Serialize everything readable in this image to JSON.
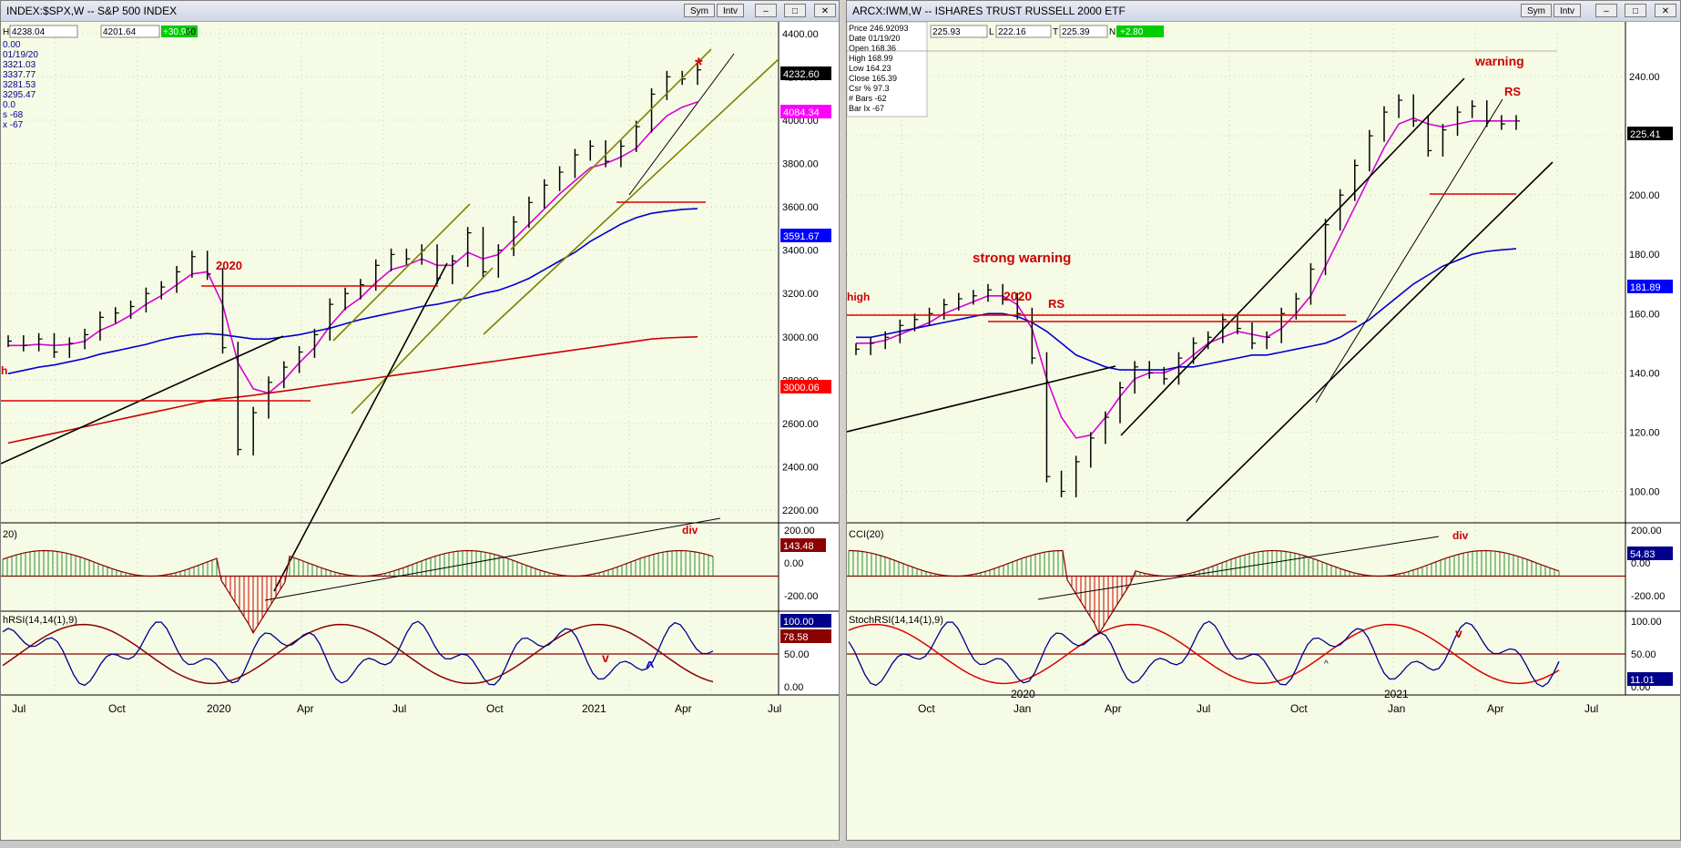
{
  "left": {
    "title": "INDEX:$SPX,W -- S&P 500 INDEX",
    "buttons": {
      "sym": "Sym",
      "intv": "Intv",
      "min": "–",
      "max": "□",
      "close": "✕"
    },
    "header_values": {
      "h_label": "H",
      "h_val": "4238.04",
      "last": "4201.64",
      "change": "+30.98",
      "extra": ".60"
    },
    "data_window": [
      "0.00",
      "01/19/20",
      "3321.03",
      "3337.77",
      "3281.53",
      "3295.47",
      "0.0",
      "s -68",
      "x -67"
    ],
    "price_axis_ticks": [
      "4400.00",
      "4200.00",
      "4000.00",
      "3800.00",
      "3600.00",
      "3400.00",
      "3200.00",
      "3000.00",
      "2800.00",
      "2600.00",
      "2400.00",
      "2200.00"
    ],
    "price_badges": [
      {
        "text": "4232.60",
        "color": "#000000"
      },
      {
        "text": "4084.34",
        "color": "#ff00ff"
      },
      {
        "text": "3591.67",
        "color": "#0000ff"
      },
      {
        "text": "3000.06",
        "color": "#ff0000"
      }
    ],
    "annotations": {
      "year2020": "2020",
      "star": "*",
      "h_edge": "h",
      "div": "div",
      "v": "v",
      "caret": "^"
    },
    "cci": {
      "label": "20)",
      "ticks": [
        "200.00",
        "0.00",
        "-200.00"
      ],
      "badge": "143.48"
    },
    "stoch": {
      "label": "hRSI(14,14(1),9)",
      "ticks": [
        "100.00",
        "50.00",
        "0.00"
      ],
      "badges": [
        "100.00",
        "78.58"
      ]
    },
    "time_axis": [
      "Jul",
      "Oct",
      "2020",
      "Apr",
      "Jul",
      "Oct",
      "2021",
      "Apr",
      "Jul"
    ]
  },
  "right": {
    "title": "ARCX:IWM,W -- ISHARES TRUST RUSSELL 2000 ETF",
    "buttons": {
      "sym": "Sym",
      "intv": "Intv",
      "min": "–",
      "max": "□",
      "close": "✕"
    },
    "header_values": {
      "v1": "225.93",
      "l_label": "L",
      "v2": "222.16",
      "t_label": "T",
      "v3": "225.39",
      "n_label": "N",
      "change": "+2.80"
    },
    "data_window": [
      "Price  246.92093",
      "Date   01/19/20",
      "Open   168.36",
      "High   168.99",
      "Low    164.23",
      "Close  165.39",
      "Csr %  97.3",
      "# Bars -62",
      "Bar Ix -67"
    ],
    "price_axis_ticks": [
      "240.00",
      "220.00",
      "200.00",
      "180.00",
      "160.00",
      "140.00",
      "120.00",
      "100.00"
    ],
    "price_badges": [
      {
        "text": "225.41",
        "color": "#000000"
      },
      {
        "text": "181.89",
        "color": "#0000ff"
      }
    ],
    "annotations": {
      "warning": "warning",
      "rs_top": "RS",
      "strong": "strong warning",
      "year2020": "2020",
      "rs": "RS",
      "high": "high",
      "div": "div",
      "v": "v",
      "caret": "^"
    },
    "cci": {
      "label": "CCI(20)",
      "ticks": [
        "200.00",
        "0.00",
        "-200.00"
      ],
      "badge": "54.83"
    },
    "stoch": {
      "label": "StochRSI(14,14(1),9)",
      "ticks": [
        "100.00",
        "50.00",
        "0.00"
      ],
      "badge": "11.01"
    },
    "time_axis": [
      "Oct",
      "2020",
      "Jan",
      "Apr",
      "Jul",
      "Oct",
      "2021",
      "Jan",
      "Apr",
      "Jul"
    ]
  },
  "chart_data": [
    {
      "type": "line",
      "title": "INDEX:$SPX,W -- S&P 500 INDEX",
      "ylim": [
        2150,
        4420
      ],
      "note_series": "weekly price bars with moving averages, CCI(20) and StochRSI panels",
      "series": [
        {
          "name": "price",
          "color": "#000000",
          "values": [
            2980,
            2960,
            2990,
            2930,
            2970,
            3010,
            3090,
            3110,
            3140,
            3200,
            3230,
            3300,
            3370,
            3290,
            2950,
            2480,
            2650,
            2790,
            2860,
            2930,
            3010,
            3150,
            3200,
            3240,
            3330,
            3380,
            3360,
            3400,
            3270,
            3350,
            3480,
            3300,
            3400,
            3530,
            3620,
            3700,
            3760,
            3840,
            3880,
            3810,
            3880,
            3970,
            4120,
            4200,
            4190,
            4232
          ]
        },
        {
          "name": "fast MA",
          "color": "#d800d8",
          "values": [
            2960,
            2960,
            2965,
            2960,
            2965,
            2980,
            3030,
            3060,
            3100,
            3150,
            3190,
            3240,
            3290,
            3300,
            3150,
            2880,
            2760,
            2740,
            2800,
            2880,
            2950,
            3050,
            3130,
            3180,
            3250,
            3310,
            3330,
            3360,
            3330,
            3330,
            3390,
            3360,
            3380,
            3450,
            3520,
            3590,
            3660,
            3720,
            3780,
            3800,
            3830,
            3870,
            3950,
            4020,
            4060,
            4084
          ]
        },
        {
          "name": "mid MA",
          "color": "#0000cc",
          "values": [
            2830,
            2845,
            2860,
            2870,
            2885,
            2900,
            2920,
            2935,
            2950,
            2965,
            2985,
            3000,
            3010,
            3015,
            3010,
            3000,
            2990,
            2990,
            3000,
            3010,
            3025,
            3040,
            3060,
            3080,
            3095,
            3110,
            3125,
            3140,
            3150,
            3165,
            3180,
            3200,
            3215,
            3240,
            3270,
            3310,
            3350,
            3390,
            3440,
            3480,
            3520,
            3550,
            3570,
            3580,
            3588,
            3592
          ]
        },
        {
          "name": "slow MA",
          "color": "#cc0000",
          "values": [
            2510,
            2525,
            2540,
            2555,
            2570,
            2585,
            2600,
            2615,
            2630,
            2645,
            2660,
            2675,
            2690,
            2705,
            2715,
            2722,
            2730,
            2740,
            2750,
            2760,
            2770,
            2780,
            2790,
            2800,
            2810,
            2820,
            2830,
            2840,
            2850,
            2860,
            2870,
            2880,
            2890,
            2900,
            2910,
            2920,
            2930,
            2940,
            2950,
            2960,
            2970,
            2980,
            2990,
            2995,
            2998,
            3000
          ]
        }
      ]
    },
    {
      "type": "line",
      "title": "ARCX:IWM,W -- ISHARES TRUST RUSSELL 2000 ETF",
      "ylim": [
        90,
        256
      ],
      "series": [
        {
          "name": "price",
          "color": "#000000",
          "values": [
            148,
            150,
            152,
            156,
            158,
            160,
            163,
            165,
            166,
            168,
            165,
            160,
            145,
            105,
            100,
            110,
            118,
            125,
            135,
            142,
            140,
            138,
            145,
            150,
            152,
            158,
            155,
            150,
            152,
            160,
            165,
            175,
            190,
            200,
            210,
            220,
            228,
            232,
            225,
            215,
            222,
            228,
            230,
            225,
            224,
            225
          ]
        },
        {
          "name": "fast MA",
          "color": "#d800d8",
          "values": [
            150,
            150,
            151,
            153,
            155,
            157,
            160,
            162,
            164,
            166,
            166,
            163,
            155,
            138,
            125,
            118,
            119,
            125,
            132,
            138,
            140,
            140,
            142,
            146,
            150,
            152,
            154,
            153,
            152,
            155,
            160,
            166,
            176,
            186,
            196,
            206,
            216,
            224,
            226,
            224,
            223,
            224,
            225,
            225,
            225,
            225
          ]
        },
        {
          "name": "mid MA",
          "color": "#0000cc",
          "values": [
            152,
            152,
            153,
            154,
            155,
            156,
            157,
            158,
            159,
            160,
            160,
            159,
            157,
            154,
            150,
            146,
            144,
            142,
            141,
            141,
            141,
            141,
            142,
            142,
            143,
            144,
            145,
            146,
            146,
            147,
            148,
            149,
            150,
            152,
            155,
            158,
            162,
            166,
            170,
            173,
            176,
            178,
            180,
            181,
            181.5,
            181.89
          ]
        }
      ]
    }
  ]
}
